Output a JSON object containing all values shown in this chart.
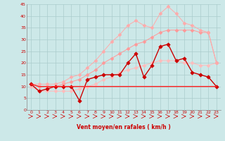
{
  "x": [
    0,
    1,
    2,
    3,
    4,
    5,
    6,
    7,
    8,
    9,
    10,
    11,
    12,
    13,
    14,
    15,
    16,
    17,
    18,
    19,
    20,
    21,
    22,
    23
  ],
  "line_light1": [
    10,
    8,
    8,
    8,
    8,
    8,
    9,
    10,
    11,
    13,
    14,
    16,
    17,
    18,
    19,
    20,
    21,
    21,
    21,
    20,
    20,
    19,
    19,
    20
  ],
  "line_light2": [
    11,
    10,
    10,
    10,
    11,
    12,
    13,
    15,
    17,
    20,
    22,
    24,
    26,
    28,
    29,
    31,
    33,
    34,
    34,
    34,
    34,
    33,
    33,
    20
  ],
  "line_light3": [
    11,
    11,
    11,
    11,
    12,
    14,
    15,
    18,
    21,
    25,
    29,
    32,
    36,
    38,
    36,
    35,
    41,
    44,
    41,
    37,
    36,
    34,
    33,
    20
  ],
  "line_dark1": [
    11,
    8,
    9,
    10,
    10,
    10,
    4,
    13,
    14,
    15,
    15,
    15,
    20,
    24,
    14,
    19,
    27,
    28,
    21,
    22,
    16,
    15,
    14,
    10
  ],
  "line_dark2": [
    11,
    10,
    10,
    10,
    10,
    10,
    10,
    10,
    10,
    10,
    10,
    10,
    10,
    10,
    10,
    10,
    10,
    10,
    10,
    10,
    10,
    10,
    10,
    10
  ],
  "bg_color": "#cce8e8",
  "grid_color": "#aacccc",
  "line_light1_color": "#ffbbbb",
  "line_light2_color": "#ff9999",
  "line_light3_color": "#ffaaaa",
  "line_dark1_color": "#cc0000",
  "line_dark2_color": "#ff2222",
  "xlabel": "Vent moyen/en rafales ( km/h )",
  "arrow_color": "#cc2222",
  "tick_color": "#cc0000",
  "ylim": [
    0,
    45
  ],
  "xlim": [
    -0.5,
    23.5
  ],
  "yticks": [
    0,
    5,
    10,
    15,
    20,
    25,
    30,
    35,
    40,
    45
  ],
  "xticks": [
    0,
    1,
    2,
    3,
    4,
    5,
    6,
    7,
    8,
    9,
    10,
    11,
    12,
    13,
    14,
    15,
    16,
    17,
    18,
    19,
    20,
    21,
    22,
    23
  ]
}
